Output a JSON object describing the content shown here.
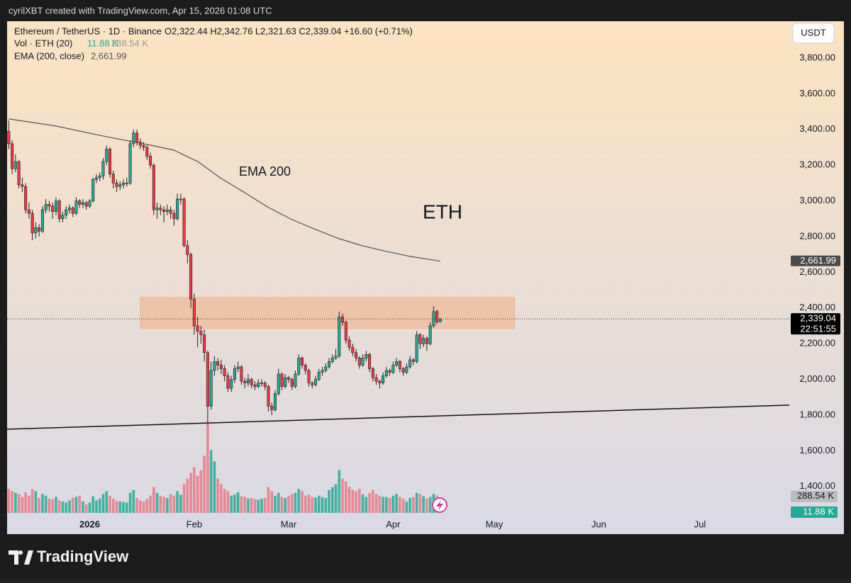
{
  "header": {
    "credit": "cyrilXBT created with TradingView.com, Apr 15, 2026 01:08 UTC"
  },
  "footer": {
    "brand": "TradingView"
  },
  "chart_data": {
    "type": "candlestick",
    "symbol": "Ethereum / TetherUS · 1D · Binance",
    "ohlc_text": "O2,322.44  H2,342.76  L2,321.63  C2,339.04  +16.60 (+0.71%)",
    "vol_label": "Vol · ETH (20)",
    "vol_value": "11.88 K",
    "vol_ma": "288.54 K",
    "ema_label": "EMA (200, close)",
    "ema_value": "2,661.99",
    "currency": "USDT",
    "annotations": [
      "EMA 200",
      "ETH"
    ],
    "countdown": "22:51:55",
    "xlim": [
      -0.5,
      231.5
    ],
    "xticks": [
      {
        "value": 24,
        "label": "2026"
      },
      {
        "value": 55,
        "label": "Feb"
      },
      {
        "value": 83,
        "label": "Mar"
      },
      {
        "value": 114,
        "label": "Apr"
      },
      {
        "value": 144,
        "label": "May"
      },
      {
        "value": 175,
        "label": "Jun"
      },
      {
        "value": 205,
        "label": "Jul"
      }
    ],
    "ylim": [
      1185,
      4006
    ],
    "yticks": [
      {
        "value": 1400,
        "label": "1,400.00"
      },
      {
        "value": 1600,
        "label": "1,600.00"
      },
      {
        "value": 1800,
        "label": "1,800.00"
      },
      {
        "value": 2000,
        "label": "2,000.00"
      },
      {
        "value": 2200,
        "label": "2,200.00"
      },
      {
        "value": 2400,
        "label": "2,400.00"
      },
      {
        "value": 2600,
        "label": "2,600.00"
      },
      {
        "value": 2800,
        "label": "2,800.00"
      },
      {
        "value": 3000,
        "label": "3,000.00"
      },
      {
        "value": 3200,
        "label": "3,200.00"
      },
      {
        "value": 3400,
        "label": "3,400.00"
      },
      {
        "value": 3600,
        "label": "3,600.00"
      },
      {
        "value": 3800,
        "label": "3,800.00"
      }
    ],
    "y2lim": [
      0,
      1600
    ],
    "up_color": "#22ab94",
    "down_color": "#f23645",
    "candles": [
      [
        3390,
        3450,
        3290,
        3320
      ],
      [
        3320,
        3340,
        3150,
        3180
      ],
      [
        3180,
        3260,
        3160,
        3220
      ],
      [
        3220,
        3230,
        3070,
        3090
      ],
      [
        3090,
        3130,
        3050,
        3080
      ],
      [
        3080,
        3100,
        2930,
        2950
      ],
      [
        2950,
        2990,
        2900,
        2930
      ],
      [
        2930,
        2950,
        2780,
        2820
      ],
      [
        2820,
        2880,
        2790,
        2850
      ],
      [
        2850,
        2870,
        2800,
        2830
      ],
      [
        2830,
        2970,
        2820,
        2950
      ],
      [
        2950,
        3010,
        2930,
        2980
      ],
      [
        2980,
        3000,
        2940,
        2970
      ],
      [
        2970,
        2990,
        2900,
        2940
      ],
      [
        2940,
        3020,
        2920,
        3000
      ],
      [
        3000,
        3010,
        2880,
        2900
      ],
      [
        2900,
        2940,
        2880,
        2920
      ],
      [
        2920,
        2970,
        2900,
        2950
      ],
      [
        2950,
        2980,
        2930,
        2960
      ],
      [
        2960,
        2970,
        2910,
        2930
      ],
      [
        2930,
        3020,
        2920,
        3000
      ],
      [
        3000,
        3010,
        2960,
        2980
      ],
      [
        2980,
        3010,
        2960,
        2990
      ],
      [
        2990,
        3000,
        2950,
        2970
      ],
      [
        2970,
        3010,
        2960,
        3000
      ],
      [
        3000,
        3130,
        2990,
        3120
      ],
      [
        3120,
        3150,
        3100,
        3130
      ],
      [
        3130,
        3160,
        3110,
        3140
      ],
      [
        3140,
        3240,
        3120,
        3220
      ],
      [
        3220,
        3310,
        3200,
        3290
      ],
      [
        3290,
        3300,
        3130,
        3150
      ],
      [
        3150,
        3170,
        3070,
        3100
      ],
      [
        3100,
        3120,
        3050,
        3080
      ],
      [
        3080,
        3110,
        3060,
        3090
      ],
      [
        3090,
        3120,
        3070,
        3100
      ],
      [
        3100,
        3130,
        3080,
        3100
      ],
      [
        3100,
        3340,
        3090,
        3320
      ],
      [
        3320,
        3400,
        3300,
        3380
      ],
      [
        3380,
        3400,
        3310,
        3330
      ],
      [
        3330,
        3350,
        3290,
        3310
      ],
      [
        3310,
        3330,
        3280,
        3300
      ],
      [
        3300,
        3310,
        3230,
        3250
      ],
      [
        3250,
        3270,
        3180,
        3200
      ],
      [
        3200,
        3210,
        2920,
        2950
      ],
      [
        2950,
        2990,
        2900,
        2960
      ],
      [
        2960,
        2980,
        2920,
        2950
      ],
      [
        2950,
        2970,
        2880,
        2940
      ],
      [
        2940,
        2980,
        2920,
        2950
      ],
      [
        2950,
        2970,
        2900,
        2930
      ],
      [
        2930,
        2950,
        2860,
        2900
      ],
      [
        2900,
        3040,
        2890,
        3010
      ],
      [
        3010,
        3040,
        2980,
        3010
      ],
      [
        3010,
        3020,
        2740,
        2750
      ],
      [
        2750,
        2780,
        2650,
        2700
      ],
      [
        2700,
        2710,
        2400,
        2450
      ],
      [
        2450,
        2480,
        2250,
        2300
      ],
      [
        2300,
        2350,
        2180,
        2270
      ],
      [
        2270,
        2300,
        2200,
        2250
      ],
      [
        2250,
        2280,
        2100,
        2150
      ],
      [
        2150,
        2160,
        1750,
        1850
      ],
      [
        1850,
        2100,
        1830,
        2050
      ],
      [
        2050,
        2130,
        2020,
        2100
      ],
      [
        2100,
        2120,
        2050,
        2080
      ],
      [
        2080,
        2110,
        2030,
        2060
      ],
      [
        2060,
        2080,
        1990,
        2020
      ],
      [
        2020,
        2040,
        1930,
        1950
      ],
      [
        1950,
        2020,
        1930,
        2000
      ],
      [
        2000,
        2080,
        1980,
        2060
      ],
      [
        2060,
        2100,
        2040,
        2070
      ],
      [
        2070,
        2080,
        1970,
        1990
      ],
      [
        1990,
        2010,
        1950,
        1980
      ],
      [
        1980,
        2030,
        1960,
        2000
      ],
      [
        2000,
        2010,
        1950,
        1970
      ],
      [
        1970,
        1990,
        1940,
        1960
      ],
      [
        1960,
        2000,
        1950,
        1980
      ],
      [
        1980,
        2000,
        1960,
        1980
      ],
      [
        1980,
        1990,
        1940,
        1960
      ],
      [
        1960,
        1970,
        1820,
        1850
      ],
      [
        1850,
        1870,
        1800,
        1830
      ],
      [
        1830,
        1940,
        1820,
        1920
      ],
      [
        1920,
        2060,
        1910,
        2030
      ],
      [
        2030,
        2040,
        1940,
        1960
      ],
      [
        1960,
        2030,
        1950,
        2010
      ],
      [
        2010,
        2020,
        1980,
        2000
      ],
      [
        2000,
        2010,
        1940,
        1960
      ],
      [
        1960,
        2050,
        1950,
        2030
      ],
      [
        2030,
        2140,
        2020,
        2120
      ],
      [
        2120,
        2130,
        2060,
        2080
      ],
      [
        2080,
        2090,
        2030,
        2050
      ],
      [
        2050,
        2060,
        1960,
        1980
      ],
      [
        1980,
        1990,
        1950,
        1970
      ],
      [
        1970,
        2020,
        1960,
        2000
      ],
      [
        2000,
        2060,
        1990,
        2040
      ],
      [
        2040,
        2070,
        2020,
        2050
      ],
      [
        2050,
        2090,
        2040,
        2070
      ],
      [
        2070,
        2120,
        2060,
        2100
      ],
      [
        2100,
        2140,
        2090,
        2120
      ],
      [
        2120,
        2170,
        2110,
        2130
      ],
      [
        2130,
        2380,
        2120,
        2350
      ],
      [
        2350,
        2370,
        2300,
        2320
      ],
      [
        2320,
        2330,
        2200,
        2220
      ],
      [
        2220,
        2240,
        2160,
        2180
      ],
      [
        2180,
        2200,
        2130,
        2150
      ],
      [
        2150,
        2170,
        2100,
        2120
      ],
      [
        2120,
        2130,
        2060,
        2080
      ],
      [
        2080,
        2140,
        2070,
        2120
      ],
      [
        2120,
        2160,
        2100,
        2140
      ],
      [
        2140,
        2150,
        2040,
        2060
      ],
      [
        2060,
        2070,
        1990,
        2010
      ],
      [
        2010,
        2030,
        1970,
        1990
      ],
      [
        1990,
        2000,
        1950,
        1980
      ],
      [
        1980,
        2040,
        1970,
        2020
      ],
      [
        2020,
        2070,
        2010,
        2050
      ],
      [
        2050,
        2060,
        2020,
        2040
      ],
      [
        2040,
        2100,
        2030,
        2080
      ],
      [
        2080,
        2120,
        2070,
        2100
      ],
      [
        2100,
        2110,
        2040,
        2060
      ],
      [
        2060,
        2070,
        2020,
        2040
      ],
      [
        2040,
        2090,
        2030,
        2070
      ],
      [
        2070,
        2130,
        2060,
        2110
      ],
      [
        2110,
        2120,
        2080,
        2100
      ],
      [
        2100,
        2270,
        2090,
        2250
      ],
      [
        2250,
        2260,
        2170,
        2200
      ],
      [
        2200,
        2250,
        2180,
        2230
      ],
      [
        2230,
        2240,
        2160,
        2200
      ],
      [
        2200,
        2320,
        2190,
        2300
      ],
      [
        2300,
        2410,
        2290,
        2380
      ],
      [
        2380,
        2390,
        2310,
        2322.44
      ],
      [
        2322.44,
        2342.76,
        2321.63,
        2339.04
      ]
    ],
    "volume": [
      420,
      380,
      350,
      330,
      280,
      360,
      300,
      420,
      380,
      260,
      330,
      300,
      250,
      240,
      280,
      220,
      200,
      180,
      220,
      260,
      280,
      300,
      200,
      150,
      180,
      290,
      220,
      250,
      330,
      380,
      300,
      250,
      210,
      200,
      190,
      180,
      350,
      400,
      260,
      220,
      200,
      240,
      300,
      450,
      350,
      300,
      280,
      260,
      330,
      300,
      380,
      320,
      500,
      600,
      700,
      800,
      650,
      750,
      1000,
      1600,
      1100,
      900,
      600,
      500,
      420,
      380,
      300,
      320,
      360,
      290,
      280,
      250,
      260,
      240,
      230,
      250,
      260,
      450,
      380,
      300,
      350,
      280,
      260,
      300,
      330,
      350,
      420,
      380,
      300,
      320,
      280,
      270,
      300,
      280,
      260,
      400,
      450,
      500,
      750,
      600,
      550,
      460,
      400,
      380,
      420,
      320,
      280,
      350,
      400,
      330,
      300,
      280,
      280,
      260,
      300,
      330,
      280,
      250,
      200,
      260,
      280,
      350,
      330,
      290,
      250,
      280,
      330,
      300,
      11.88
    ],
    "ema": {
      "x": [
        0,
        14,
        28,
        42,
        49,
        56,
        63,
        70,
        77,
        84,
        91,
        98,
        105,
        112,
        119,
        128
      ],
      "values": [
        3459,
        3419,
        3363,
        3312,
        3284,
        3221,
        3125,
        3046,
        2963,
        2895,
        2840,
        2788,
        2748,
        2717,
        2689,
        2661.99
      ],
      "color": "#555555"
    },
    "zone": {
      "x": [
        39,
        150
      ],
      "values": [
        2285,
        2459
      ],
      "color": "#f0b48c"
    },
    "trendline": {
      "x": [
        -0.5,
        231.5
      ],
      "values": [
        1721,
        1856
      ],
      "color": "#111111"
    },
    "price_tags": [
      {
        "value": 2661.99,
        "label": "2,661.99"
      },
      {
        "value": 2339.04,
        "label": "2,339.04"
      }
    ],
    "vol_tags": [
      {
        "value": 288.54,
        "label": "288.54 K"
      },
      {
        "value": 11.88,
        "label": "11.88 K"
      }
    ]
  }
}
